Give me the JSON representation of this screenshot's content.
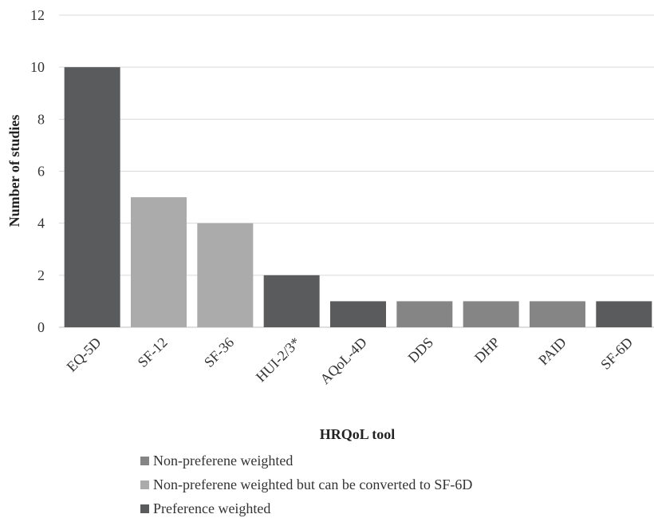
{
  "chart_data": {
    "type": "bar",
    "title": "",
    "xlabel": "HRQoL tool",
    "ylabel": "Number of studies",
    "ylim": [
      0,
      12
    ],
    "yticks": [
      0,
      2,
      4,
      6,
      8,
      10,
      12
    ],
    "grid": true,
    "legend_placement": "bottom",
    "categories": [
      "EQ-5D",
      "SF-12",
      "SF-36",
      "HUI-2/3*",
      "AQoL-4D",
      "DDS",
      "DHP",
      "PAID",
      "SF-6D"
    ],
    "values": [
      10,
      5,
      4,
      2,
      1,
      1,
      1,
      1,
      1
    ],
    "bar_groups": [
      "Preference weighted",
      "Non-preferene weighted but can be converted to SF-6D",
      "Non-preferene weighted but can be converted to SF-6D",
      "Preference weighted",
      "Preference weighted",
      "Non-preferene weighted",
      "Non-preferene weighted",
      "Non-preferene weighted",
      "Preference weighted"
    ],
    "legend": [
      {
        "name": "Non-preferene weighted",
        "color": "#858585"
      },
      {
        "name": "Non-preferene weighted but can be converted to SF-6D",
        "color": "#ababab"
      },
      {
        "name": "Preference weighted",
        "color": "#5a5b5d"
      }
    ]
  }
}
